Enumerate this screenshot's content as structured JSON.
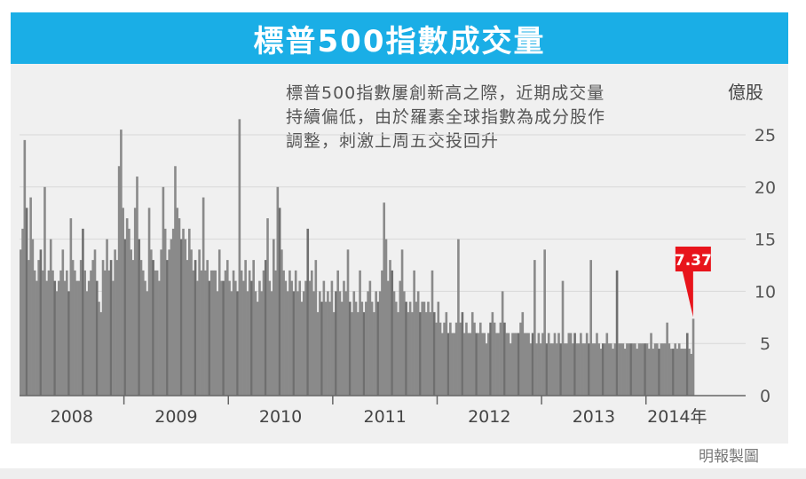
{
  "title": "標普500指數成交量",
  "annotation_lines": [
    "標普500指數屢創新高之際，近期成交量",
    "持續偏低，由於羅素全球指數為成分股作",
    "調整，刺激上周五交投回升"
  ],
  "credit": "明報製圖",
  "colors": {
    "title_bg": "#1aaee6",
    "bars": "#8a8a8a",
    "bars_highlight": "#6f6f6f",
    "callout": "#e8141c",
    "background": "#f0f0f0"
  },
  "chart_data": {
    "type": "bar",
    "title": "標普500指數成交量",
    "unit_label": "億股",
    "ylim": [
      0,
      27
    ],
    "y_ticks": [
      0,
      5,
      10,
      15,
      20,
      25
    ],
    "x_ticks": [
      "2008",
      "2009",
      "2010",
      "2011",
      "2012",
      "2013",
      "2014年"
    ],
    "grid": true,
    "weeks_per_year": 52,
    "last_value": 7.37,
    "callout_label": "7.37",
    "series": [
      {
        "values": [
          14,
          16,
          24.5,
          18,
          13,
          19,
          15,
          12,
          11,
          13,
          14,
          12,
          20,
          11,
          12,
          15,
          12,
          11,
          10,
          11,
          12,
          14,
          11,
          12,
          10,
          17,
          13,
          12,
          11,
          11,
          13,
          16,
          12,
          10,
          11,
          12,
          13,
          14,
          11,
          9,
          8,
          13,
          12,
          15,
          12,
          13,
          11,
          14,
          13,
          22,
          25.5,
          18,
          15,
          17,
          16,
          14,
          13,
          18,
          21,
          15,
          13,
          12,
          11,
          10,
          18,
          14,
          13,
          12,
          12,
          11,
          14,
          20,
          16,
          13,
          14,
          15,
          16,
          22,
          18,
          17,
          15,
          16,
          15,
          13,
          16,
          14,
          12,
          13,
          11,
          14,
          12,
          19,
          12,
          13,
          11,
          12,
          12,
          12,
          10,
          14,
          11,
          11,
          12,
          13,
          11,
          10,
          12,
          11,
          10,
          26.5,
          12,
          11,
          13,
          10,
          12,
          11,
          13,
          10,
          9,
          11,
          10,
          12,
          13,
          17,
          11,
          10,
          15,
          12,
          20,
          18,
          14,
          12,
          11,
          10,
          12,
          11,
          10,
          12,
          10,
          11,
          9,
          10,
          11,
          16,
          11,
          12,
          10,
          13,
          8,
          10,
          9,
          11,
          9,
          10,
          9,
          11,
          8,
          10,
          12,
          10,
          9,
          11,
          10,
          14,
          9,
          8,
          10,
          9,
          8,
          12,
          9,
          8,
          9,
          10,
          11,
          9,
          8,
          10,
          9,
          10,
          12,
          18.5,
          15,
          11,
          13,
          12,
          10,
          9,
          8,
          11,
          14,
          10,
          9,
          8,
          9,
          8,
          12,
          9,
          10,
          8,
          9,
          9,
          8,
          9,
          8,
          12,
          8,
          7,
          9,
          7,
          6,
          7,
          8,
          6,
          7,
          6,
          6,
          7,
          15,
          7,
          8,
          6,
          7,
          6,
          6,
          8,
          7,
          6,
          6,
          7,
          6,
          6,
          5,
          6,
          7,
          8,
          7,
          6,
          6,
          7,
          10,
          7,
          6,
          6,
          5,
          6,
          6,
          6,
          6,
          7,
          8,
          6,
          6,
          6,
          5,
          6,
          13,
          5,
          6,
          5,
          6,
          14,
          5,
          6,
          5,
          5,
          6,
          5,
          6,
          5,
          11,
          5,
          5,
          6,
          6,
          5,
          6,
          5,
          5,
          6,
          5,
          5,
          6,
          5,
          13,
          5,
          5,
          6,
          5,
          4.5,
          5,
          5,
          6,
          5,
          5,
          4.5,
          5,
          12,
          5,
          5,
          5,
          4.5,
          5,
          5,
          5,
          5,
          5,
          4.5,
          5,
          5,
          5,
          5,
          5,
          4.5,
          6,
          4.5,
          5,
          5,
          4.5,
          5,
          5,
          5,
          7,
          5,
          4.5,
          4.5,
          5,
          4.5,
          5,
          4.5,
          4.5,
          4.5,
          6,
          4.5,
          4,
          7.37
        ]
      }
    ]
  }
}
